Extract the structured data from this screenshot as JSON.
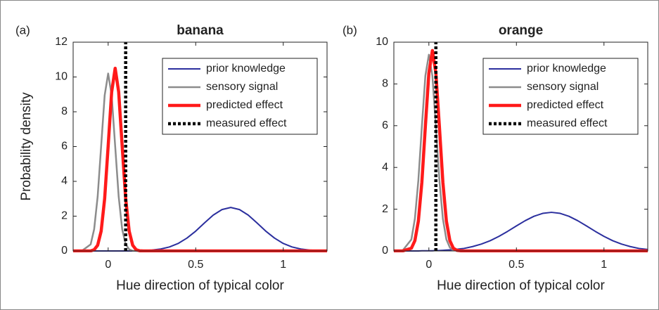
{
  "chart_data": [
    {
      "type": "line",
      "panel_label": "(a)",
      "title": "banana",
      "xlabel": "Hue direction of typical color",
      "ylabel": "Probability density",
      "x": [
        -0.2,
        -0.15,
        -0.1,
        -0.08,
        -0.06,
        -0.04,
        -0.02,
        0,
        0.02,
        0.04,
        0.06,
        0.08,
        0.1,
        0.12,
        0.14,
        0.16,
        0.18,
        0.2,
        0.25,
        0.3,
        0.35,
        0.4,
        0.45,
        0.5,
        0.55,
        0.6,
        0.65,
        0.7,
        0.75,
        0.8,
        0.85,
        0.9,
        0.95,
        1,
        1.05,
        1.1,
        1.15,
        1.2,
        1.25
      ],
      "xlim": [
        -0.2,
        1.25
      ],
      "xticks": [
        0,
        0.5,
        1
      ],
      "ylim": [
        0,
        12
      ],
      "yticks": [
        0,
        2,
        4,
        6,
        8,
        10,
        12
      ],
      "grid": false,
      "legend": "upper right",
      "series": [
        {
          "name": "prior knowledge",
          "color": "#2b2f9e",
          "linewidth": 2,
          "values": [
            0,
            0,
            0,
            0,
            0,
            0,
            0,
            0,
            0,
            0,
            0,
            0,
            0,
            0,
            0,
            0,
            0,
            0.02,
            0.05,
            0.11,
            0.23,
            0.43,
            0.74,
            1.14,
            1.61,
            2.06,
            2.38,
            2.5,
            2.38,
            2.06,
            1.61,
            1.14,
            0.74,
            0.43,
            0.23,
            0.11,
            0.05,
            0.02,
            0.01
          ]
        },
        {
          "name": "sensory signal",
          "color": "#8c8c8c",
          "linewidth": 2.5,
          "values": [
            0,
            0.01,
            0.38,
            1.25,
            3.13,
            6.03,
            8.94,
            10.2,
            8.94,
            6.03,
            3.13,
            1.25,
            0.38,
            0.09,
            0.01,
            0,
            0,
            0,
            0,
            0,
            0,
            0,
            0,
            0,
            0,
            0,
            0,
            0,
            0,
            0,
            0,
            0,
            0,
            0,
            0,
            0,
            0,
            0,
            0
          ]
        },
        {
          "name": "predicted effect",
          "color": "#ff1a1a",
          "linewidth": 4.5,
          "values": [
            0,
            0,
            0,
            0.07,
            0.33,
            1.14,
            3.01,
            6.03,
            9.14,
            10.5,
            9.14,
            6.03,
            3.01,
            1.14,
            0.33,
            0.07,
            0.01,
            0,
            0,
            0,
            0,
            0,
            0,
            0,
            0,
            0,
            0,
            0,
            0,
            0,
            0,
            0,
            0,
            0,
            0,
            0,
            0,
            0,
            0
          ]
        },
        {
          "name": "measured effect",
          "color": "#000000",
          "linewidth": 4.5,
          "linestyle": "dotted",
          "x": [
            0.1,
            0.1
          ],
          "values": [
            0,
            12
          ]
        }
      ]
    },
    {
      "type": "line",
      "panel_label": "(b)",
      "title": "orange",
      "xlabel": "Hue direction of typical color",
      "x": [
        -0.2,
        -0.15,
        -0.1,
        -0.08,
        -0.06,
        -0.04,
        -0.02,
        0,
        0.02,
        0.04,
        0.06,
        0.08,
        0.1,
        0.12,
        0.14,
        0.16,
        0.18,
        0.2,
        0.25,
        0.3,
        0.35,
        0.4,
        0.45,
        0.5,
        0.55,
        0.6,
        0.65,
        0.7,
        0.75,
        0.8,
        0.85,
        0.9,
        0.95,
        1,
        1.05,
        1.1,
        1.15,
        1.2,
        1.25
      ],
      "xlim": [
        -0.2,
        1.25
      ],
      "xticks": [
        0,
        0.5,
        1
      ],
      "ylim": [
        0,
        10
      ],
      "yticks": [
        0,
        2,
        4,
        6,
        8,
        10
      ],
      "grid": false,
      "legend": "upper right",
      "series": [
        {
          "name": "prior knowledge",
          "color": "#2b2f9e",
          "linewidth": 2,
          "values": [
            0,
            0,
            0,
            0,
            0,
            0.01,
            0.01,
            0.01,
            0.01,
            0.02,
            0.02,
            0.03,
            0.04,
            0.05,
            0.06,
            0.08,
            0.1,
            0.12,
            0.21,
            0.33,
            0.49,
            0.7,
            0.94,
            1.2,
            1.45,
            1.66,
            1.8,
            1.85,
            1.8,
            1.66,
            1.45,
            1.2,
            0.94,
            0.7,
            0.49,
            0.33,
            0.21,
            0.12,
            0.07
          ]
        },
        {
          "name": "sensory signal",
          "color": "#8c8c8c",
          "linewidth": 2.5,
          "values": [
            0,
            0.02,
            0.55,
            1.54,
            3.39,
            5.97,
            8.39,
            9.4,
            8.39,
            5.97,
            3.39,
            1.54,
            0.55,
            0.16,
            0.04,
            0.01,
            0,
            0,
            0,
            0,
            0,
            0,
            0,
            0,
            0,
            0,
            0,
            0,
            0,
            0,
            0,
            0,
            0,
            0,
            0,
            0,
            0,
            0,
            0
          ]
        },
        {
          "name": "predicted effect",
          "color": "#ff1a1a",
          "linewidth": 4.5,
          "values": [
            0,
            0,
            0.13,
            0.49,
            1.43,
            3.29,
            5.97,
            8.52,
            9.6,
            8.52,
            5.97,
            3.29,
            1.43,
            0.49,
            0.13,
            0.03,
            0.01,
            0,
            0,
            0,
            0,
            0,
            0,
            0,
            0,
            0,
            0,
            0,
            0,
            0,
            0,
            0,
            0,
            0,
            0,
            0,
            0,
            0,
            0
          ]
        },
        {
          "name": "measured effect",
          "color": "#000000",
          "linewidth": 4.5,
          "linestyle": "dotted",
          "x": [
            0.04,
            0.04
          ],
          "values": [
            0,
            10
          ]
        }
      ]
    }
  ]
}
